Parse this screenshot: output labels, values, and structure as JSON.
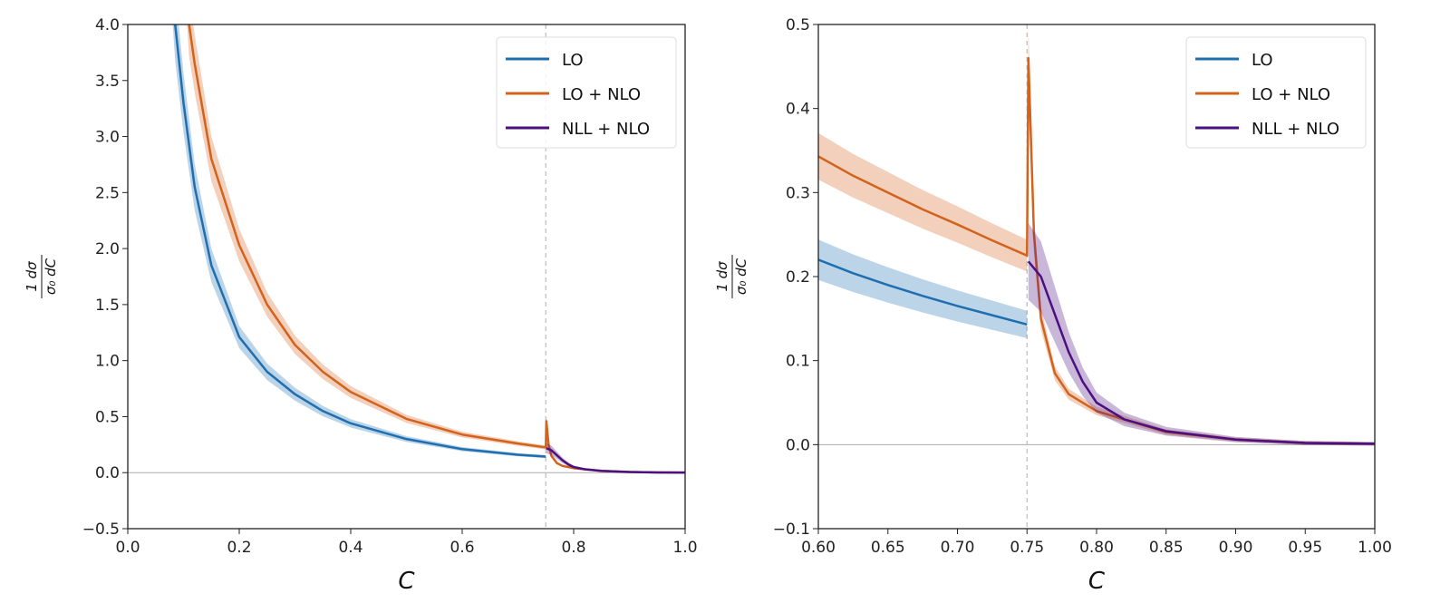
{
  "colors": {
    "LO": "#1f6fb0",
    "LO + NLO": "#d3621d",
    "NLL + NLO": "#4b0f80"
  },
  "ylabel": {
    "numerator": "1  dσ",
    "denominator": "σ₀ dC"
  },
  "chart_data": [
    {
      "type": "line",
      "xlabel": "C",
      "ylabel": "1/σ0 dσ/dC",
      "xlim": [
        0.0,
        1.0
      ],
      "ylim": [
        -0.5,
        4.0
      ],
      "xticks": [
        "0.0",
        "0.2",
        "0.4",
        "0.6",
        "0.8",
        "1.0"
      ],
      "xtick_values": [
        0,
        0.2,
        0.4,
        0.6,
        0.8,
        1.0
      ],
      "yticks": [
        "−0.5",
        "0.0",
        "0.5",
        "1.0",
        "1.5",
        "2.0",
        "2.5",
        "3.0",
        "3.5",
        "4.0"
      ],
      "ytick_values": [
        -0.5,
        0,
        0.5,
        1,
        1.5,
        2,
        2.5,
        3,
        3.5,
        4
      ],
      "vline": 0.75,
      "hline": 0.0,
      "legend": "top-right",
      "series": [
        {
          "name": "LO",
          "x": [
            0.08,
            0.085,
            0.1,
            0.12,
            0.15,
            0.2,
            0.25,
            0.3,
            0.35,
            0.4,
            0.5,
            0.6,
            0.7,
            0.75
          ],
          "y": [
            4.4,
            4.0,
            3.3,
            2.55,
            1.85,
            1.21,
            0.9,
            0.7,
            0.55,
            0.44,
            0.3,
            0.21,
            0.16,
            0.143
          ],
          "band": 0.08
        },
        {
          "name": "LO + NLO",
          "x": [
            0.105,
            0.11,
            0.12,
            0.15,
            0.2,
            0.25,
            0.3,
            0.35,
            0.4,
            0.5,
            0.6,
            0.7,
            0.75,
            0.751,
            0.755,
            0.76,
            0.77,
            0.78,
            0.8,
            0.85,
            0.9,
            0.95,
            1.0
          ],
          "y": [
            4.4,
            4.0,
            3.65,
            2.8,
            2.03,
            1.5,
            1.14,
            0.9,
            0.72,
            0.48,
            0.34,
            0.26,
            0.225,
            0.46,
            0.25,
            0.15,
            0.085,
            0.06,
            0.04,
            0.015,
            0.006,
            0.002,
            0.001
          ],
          "band": 0.07
        },
        {
          "name": "NLL + NLO",
          "x": [
            0.751,
            0.76,
            0.77,
            0.78,
            0.79,
            0.8,
            0.82,
            0.85,
            0.9,
            0.95,
            1.0
          ],
          "y": [
            0.218,
            0.2,
            0.155,
            0.11,
            0.075,
            0.05,
            0.03,
            0.016,
            0.006,
            0.002,
            0.001
          ],
          "band": 0.2
        }
      ]
    },
    {
      "type": "line",
      "xlabel": "C",
      "ylabel": "1/σ0 dσ/dC",
      "xlim": [
        0.6,
        1.0
      ],
      "ylim": [
        -0.1,
        0.5
      ],
      "xticks": [
        "0.60",
        "0.65",
        "0.70",
        "0.75",
        "0.80",
        "0.85",
        "0.90",
        "0.95",
        "1.00"
      ],
      "xtick_values": [
        0.6,
        0.65,
        0.7,
        0.75,
        0.8,
        0.85,
        0.9,
        0.95,
        1.0
      ],
      "yticks": [
        "−0.1",
        "0.0",
        "0.1",
        "0.2",
        "0.3",
        "0.4",
        "0.5"
      ],
      "ytick_values": [
        -0.1,
        0,
        0.1,
        0.2,
        0.3,
        0.4,
        0.5
      ],
      "vline": 0.75,
      "hline": 0.0,
      "legend": "top-right",
      "series": [
        {
          "name": "LO",
          "x": [
            0.6,
            0.625,
            0.65,
            0.675,
            0.7,
            0.725,
            0.75
          ],
          "y": [
            0.22,
            0.204,
            0.19,
            0.177,
            0.165,
            0.154,
            0.143
          ],
          "band": 0.1
        },
        {
          "name": "LO + NLO",
          "x": [
            0.6,
            0.625,
            0.65,
            0.675,
            0.7,
            0.725,
            0.75,
            0.751,
            0.755,
            0.76,
            0.77,
            0.78,
            0.8,
            0.85,
            0.9,
            0.95,
            1.0
          ],
          "y": [
            0.343,
            0.32,
            0.3,
            0.28,
            0.262,
            0.243,
            0.225,
            0.46,
            0.25,
            0.15,
            0.085,
            0.06,
            0.04,
            0.015,
            0.006,
            0.002,
            0.001
          ],
          "band": 0.075
        },
        {
          "name": "NLL + NLO",
          "x": [
            0.751,
            0.76,
            0.77,
            0.78,
            0.79,
            0.8,
            0.82,
            0.85,
            0.9,
            0.95,
            1.0
          ],
          "y": [
            0.218,
            0.2,
            0.155,
            0.11,
            0.075,
            0.05,
            0.03,
            0.016,
            0.006,
            0.002,
            0.001
          ],
          "band": 0.2
        }
      ]
    }
  ]
}
